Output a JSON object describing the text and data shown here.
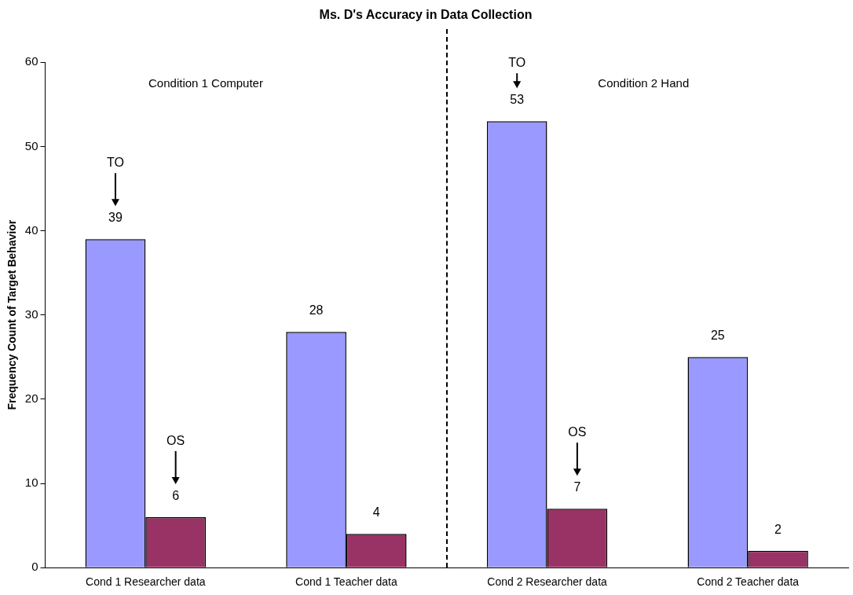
{
  "chart_data": {
    "type": "bar",
    "title": "Ms. D's Accuracy in Data Collection",
    "ylabel": "Frequency Count of Target Behavior",
    "categories": [
      "Cond 1 Researcher data",
      "Cond 1 Teacher data",
      "Cond 2 Researcher data",
      "Cond 2 Teacher data"
    ],
    "series": [
      {
        "color": "#9999ff",
        "values": [
          39,
          28,
          53,
          25
        ]
      },
      {
        "color": "#993366",
        "values": [
          6,
          4,
          7,
          2
        ]
      }
    ],
    "ylim": [
      0,
      60
    ],
    "yticks": [
      0,
      10,
      20,
      30,
      40,
      50,
      60
    ],
    "grid": false,
    "legend": false,
    "data_labels": true,
    "annotations": [
      "Condition 1 Computer",
      "Condition 2 Hand",
      "TO",
      "OS",
      "TO",
      "OS"
    ]
  }
}
